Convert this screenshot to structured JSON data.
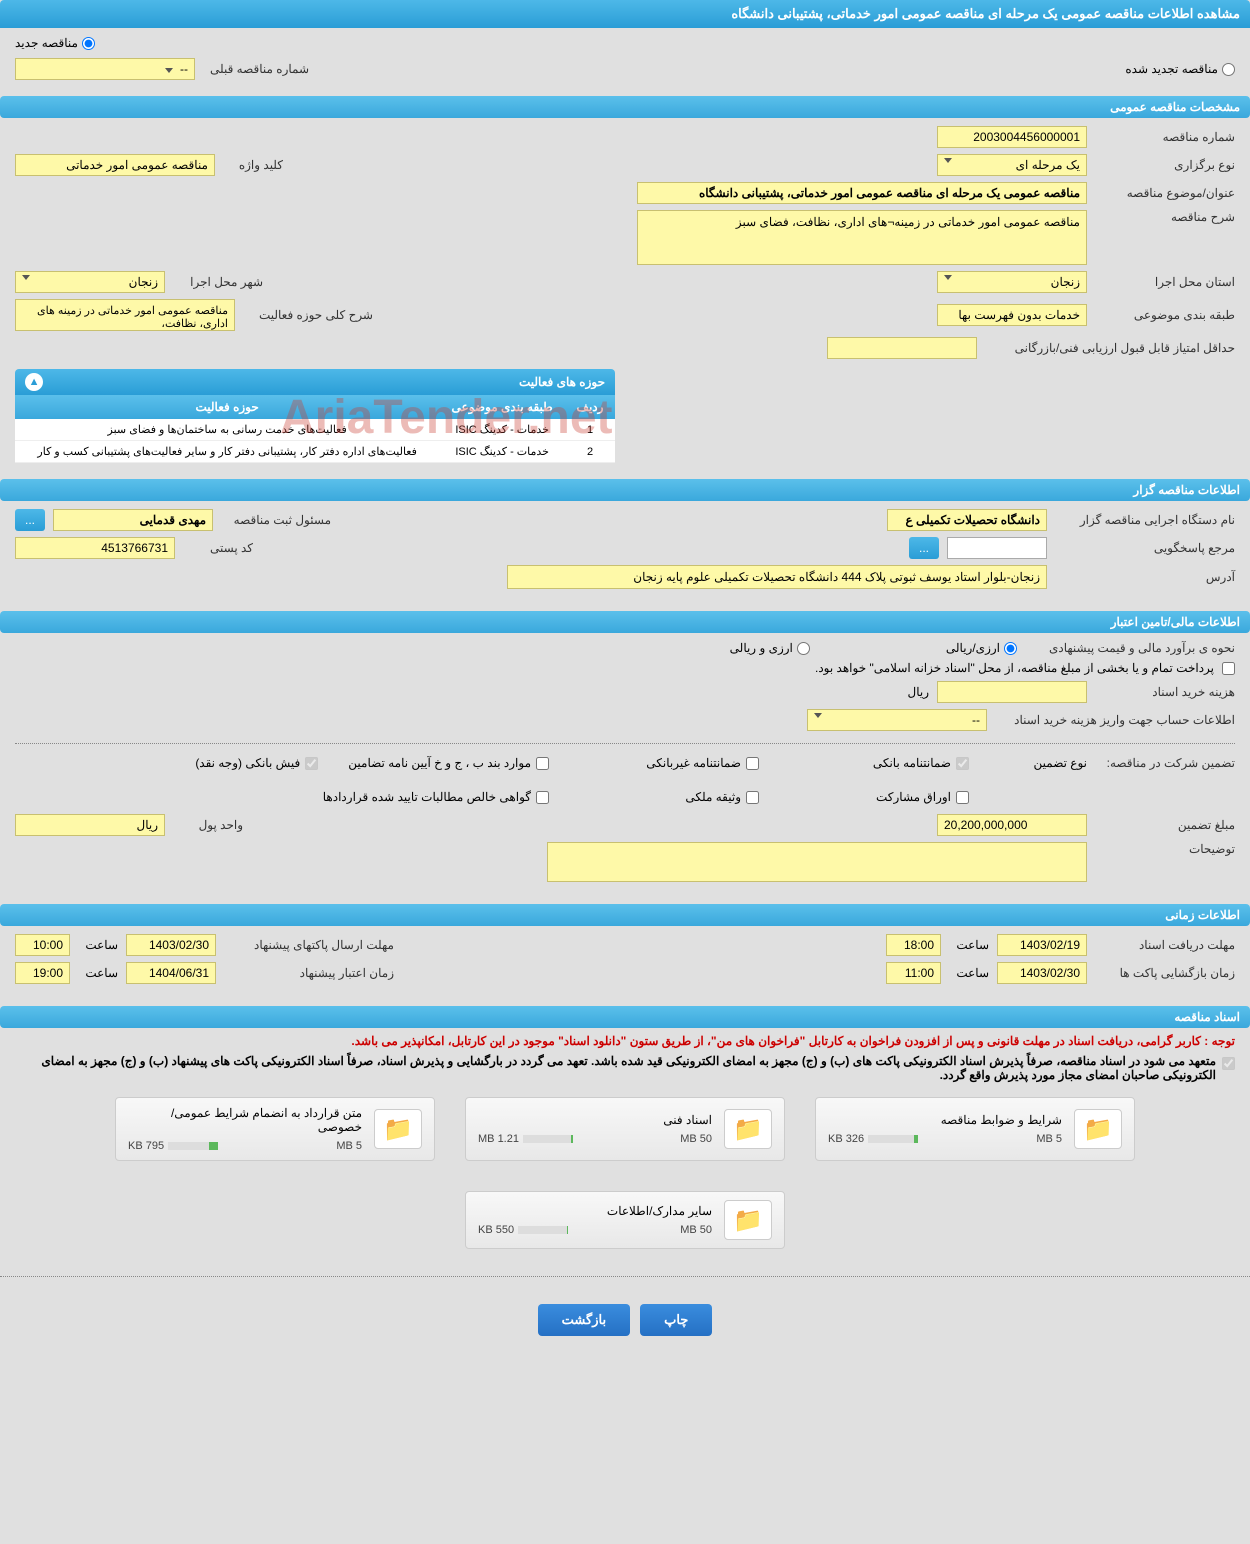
{
  "page_title": "مشاهده اطلاعات مناقصه عمومی یک مرحله ای مناقصه عمومی امور خدماتی، پشتیبانی دانشگاه",
  "top_radio": {
    "new_tender": "مناقصه جدید",
    "renewed_tender": "مناقصه تجدید شده",
    "prev_number_label": "شماره مناقصه قبلی",
    "prev_number_value": "--"
  },
  "sections": {
    "general": "مشخصات مناقصه عمومی",
    "organizer": "اطلاعات مناقصه گزار",
    "financial": "اطلاعات مالی/تامین اعتبار",
    "timing": "اطلاعات زمانی",
    "documents": "اسناد مناقصه"
  },
  "general": {
    "tender_number_label": "شماره مناقصه",
    "tender_number": "2003004456000001",
    "holding_type_label": "نوع برگزاری",
    "holding_type": "یک مرحله ای",
    "keyword_label": "کلید واژه",
    "keyword": "مناقصه عمومی امور خدماتی",
    "subject_label": "عنوان/موضوع مناقصه",
    "subject": "مناقصه عمومی یک مرحله ای مناقصه عمومی امور خدماتی، پشتیبانی دانشگاه",
    "description_label": "شرح مناقصه",
    "description": "مناقصه عمومی امور خدماتی در زمینه¬های اداری، نظافت، فضای سبز",
    "province_label": "استان محل اجرا",
    "province": "زنجان",
    "city_label": "شهر محل اجرا",
    "city": "زنجان",
    "classification_label": "طبقه بندی موضوعی",
    "classification": "خدمات بدون فهرست بها",
    "scope_desc_label": "شرح کلی حوزه فعالیت",
    "scope_desc": "مناقصه عمومی امور خدماتی در زمینه های اداری، نظافت،",
    "min_score_label": "حداقل امتیاز قابل قبول ارزیابی فنی/بازرگانی"
  },
  "activities": {
    "header": "حوزه های فعالیت",
    "columns": {
      "row": "ردیف",
      "classification": "طبقه بندی موضوعی",
      "scope": "حوزه فعالیت"
    },
    "rows": [
      {
        "n": "1",
        "cls": "خدمات - کدینگ ISIC",
        "scope": "فعالیت‌های خدمت رسانی به ساختمان‌ها و فضای سبز"
      },
      {
        "n": "2",
        "cls": "خدمات - کدینگ ISIC",
        "scope": "فعالیت‌های اداره دفتر کار، پشتیبانی دفتر کار و سایر فعالیت‌های پشتیبانی کسب و کار"
      }
    ]
  },
  "organizer": {
    "agency_label": "نام دستگاه اجرایی مناقصه گزار",
    "agency": "دانشگاه تحصیلات تکمیلی ع",
    "responsible_label": "مسئول ثبت مناقصه",
    "responsible": "مهدی قدمایی",
    "reply_ref_label": "مرجع پاسخگویی",
    "postal_label": "کد پستی",
    "postal": "4513766731",
    "address_label": "آدرس",
    "address": "زنجان-بلوار استاد یوسف ثبوتی پلاک 444 دانشگاه تحصیلات تکمیلی علوم پایه زنجان"
  },
  "financial": {
    "estimate_label": "نحوه ی برآورد مالی و قیمت پیشنهادی",
    "currency_rial": "ارزی/ریالی",
    "currency_both": "ارزی و ریالی",
    "payment_note": "پرداخت تمام و یا بخشی از مبلغ مناقصه، از محل \"اسناد خزانه اسلامی\" خواهد بود.",
    "doc_cost_label": "هزینه خرید اسناد",
    "rial_unit": "ریال",
    "account_info_label": "اطلاعات حساب جهت واریز هزینه خرید اسناد",
    "account_info_value": "--",
    "guarantee_label": "تضمین شرکت در مناقصه:",
    "guarantee_type_label": "نوع تضمین",
    "checkboxes": {
      "bank_guarantee": "ضمانتنامه بانکی",
      "nonbank_guarantee": "ضمانتنامه غیربانکی",
      "items_bpj": "موارد بند ب ، ج و خ آیین نامه تضامین",
      "bank_receipt": "فیش بانکی (وجه نقد)",
      "participation": "اوراق مشارکت",
      "property": "وثیقه ملکی",
      "net_claims": "گواهی خالص مطالبات تایید شده قراردادها"
    },
    "guarantee_amount_label": "مبلغ تضمین",
    "guarantee_amount": "20,200,000,000",
    "money_unit_label": "واحد پول",
    "money_unit": "ریال",
    "notes_label": "توضیحات"
  },
  "timing": {
    "doc_deadline_label": "مهلت دریافت اسناد",
    "doc_deadline_date": "1403/02/19",
    "doc_deadline_time": "18:00",
    "envelope_deadline_label": "مهلت ارسال پاکتهای پیشنهاد",
    "envelope_deadline_date": "1403/02/30",
    "envelope_deadline_time": "10:00",
    "opening_label": "زمان بازگشایی پاکت ها",
    "opening_date": "1403/02/30",
    "opening_time": "11:00",
    "validity_label": "زمان اعتبار پیشنهاد",
    "validity_date": "1404/06/31",
    "validity_time": "19:00",
    "time_label": "ساعت"
  },
  "documents": {
    "notice_red": "توجه : کاربر گرامی، دریافت اسناد در مهلت قانونی و پس از افزودن فراخوان به کارتابل \"فراخوان های من\"، از طریق ستون \"دانلود اسناد\" موجود در این کارتابل، امکانپذیر می باشد.",
    "notice_black": "متعهد می شود در اسناد مناقصه، صرفاً پذیرش اسناد الکترونیکی پاکت های (ب) و (ج) مجهز به امضای الکترونیکی قید شده باشد. تعهد می گردد در بارگشایی و پذیرش اسناد، صرفاً اسناد الکترونیکی پاکت های پیشنهاد (ب) و (ج) مجهز به امضای الکترونیکی صاحبان امضای مجاز مورد پذیرش واقع گردد.",
    "files": [
      {
        "title": "شرایط و ضوابط مناقصه",
        "used": "326 KB",
        "max": "5 MB",
        "pct": 8
      },
      {
        "title": "اسناد فنی",
        "used": "1.21 MB",
        "max": "50 MB",
        "pct": 4
      },
      {
        "title": "متن قرارداد به انضمام شرایط عمومی/خصوصی",
        "used": "795 KB",
        "max": "5 MB",
        "pct": 18
      },
      {
        "title": "سایر مدارک/اطلاعات",
        "used": "550 KB",
        "max": "50 MB",
        "pct": 3
      }
    ]
  },
  "buttons": {
    "print": "چاپ",
    "back": "بازگشت",
    "dots": "..."
  },
  "watermark": "AriaTender.net"
}
